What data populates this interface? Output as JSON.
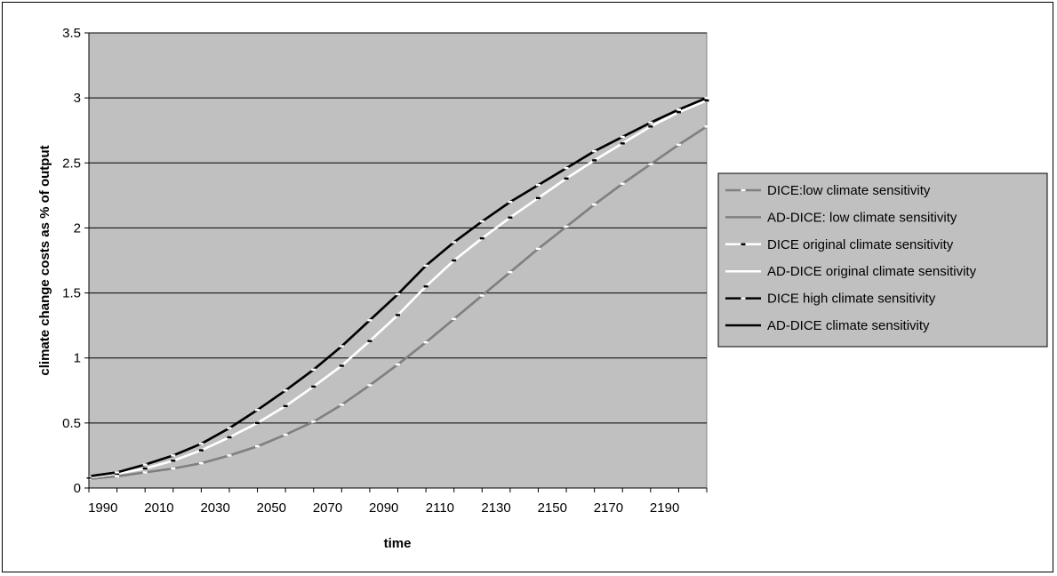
{
  "chart_data": {
    "type": "line",
    "title": "",
    "xlabel": "time",
    "ylabel": "climate change costs as % of output",
    "xlim": [
      1985,
      2205
    ],
    "ylim": [
      0,
      3.5
    ],
    "yticks": [
      "0",
      "0.5",
      "1",
      "1.5",
      "2",
      "2.5",
      "3",
      "3.5"
    ],
    "xticks": [
      "1990",
      "2010",
      "2030",
      "2050",
      "2070",
      "2090",
      "2110",
      "2130",
      "2150",
      "2170",
      "2190"
    ],
    "grid": "horizontal",
    "legend_position": "right",
    "plot_background": "#c0c0c0",
    "x": [
      1985,
      1995,
      2005,
      2015,
      2025,
      2035,
      2045,
      2055,
      2065,
      2075,
      2085,
      2095,
      2105,
      2115,
      2125,
      2135,
      2145,
      2155,
      2165,
      2175,
      2185,
      2195,
      2205
    ],
    "series": [
      {
        "name": "DICE:low climate sensitivity",
        "color": "#808080",
        "marker": "dash",
        "marker_color": "#ffffff",
        "values": [
          0.07,
          0.09,
          0.12,
          0.15,
          0.19,
          0.25,
          0.32,
          0.41,
          0.51,
          0.64,
          0.79,
          0.95,
          1.12,
          1.3,
          1.48,
          1.66,
          1.84,
          2.01,
          2.18,
          2.34,
          2.49,
          2.64,
          2.78
        ]
      },
      {
        "name": "AD-DICE: low climate sensitivity",
        "color": "#808080",
        "marker": "none",
        "values": [
          0.07,
          0.09,
          0.12,
          0.15,
          0.19,
          0.25,
          0.32,
          0.41,
          0.51,
          0.64,
          0.79,
          0.95,
          1.12,
          1.3,
          1.48,
          1.66,
          1.84,
          2.01,
          2.18,
          2.34,
          2.49,
          2.64,
          2.78
        ]
      },
      {
        "name": "DICE original climate sensitivity",
        "color": "#ffffff",
        "marker": "dash",
        "marker_color": "#000000",
        "values": [
          0.08,
          0.11,
          0.15,
          0.21,
          0.29,
          0.39,
          0.5,
          0.63,
          0.78,
          0.94,
          1.13,
          1.33,
          1.55,
          1.75,
          1.92,
          2.08,
          2.23,
          2.38,
          2.52,
          2.65,
          2.78,
          2.89,
          2.98
        ]
      },
      {
        "name": "AD-DICE original climate sensitivity",
        "color": "#ffffff",
        "marker": "none",
        "values": [
          0.08,
          0.11,
          0.15,
          0.21,
          0.29,
          0.39,
          0.5,
          0.63,
          0.78,
          0.94,
          1.13,
          1.33,
          1.55,
          1.75,
          1.92,
          2.08,
          2.23,
          2.38,
          2.52,
          2.65,
          2.78,
          2.89,
          2.98
        ]
      },
      {
        "name": "DICE high climate sensitivity",
        "color": "#000000",
        "marker": "dash",
        "marker_color": "#ffffff",
        "values": [
          0.09,
          0.12,
          0.18,
          0.25,
          0.34,
          0.46,
          0.6,
          0.75,
          0.91,
          1.09,
          1.29,
          1.49,
          1.71,
          1.89,
          2.05,
          2.2,
          2.33,
          2.46,
          2.59,
          2.7,
          2.81,
          2.91,
          3.0
        ]
      },
      {
        "name": "AD-DICE climate sensitivity",
        "color": "#000000",
        "marker": "none",
        "values": [
          0.09,
          0.12,
          0.18,
          0.25,
          0.34,
          0.46,
          0.6,
          0.75,
          0.91,
          1.09,
          1.29,
          1.49,
          1.71,
          1.89,
          2.05,
          2.2,
          2.33,
          2.46,
          2.59,
          2.7,
          2.81,
          2.91,
          3.0
        ]
      }
    ]
  }
}
